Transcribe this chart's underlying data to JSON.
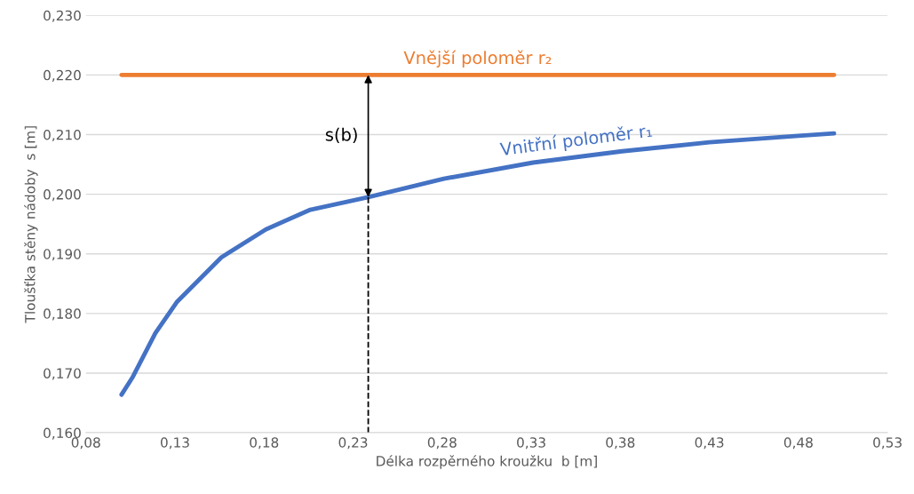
{
  "chart_data": {
    "type": "line",
    "xlabel": "Délka rozpěrného kroužku  b [m]",
    "ylabel": "Tloušťka stěny nádoby  s [m]",
    "xlim": [
      0.08,
      0.53
    ],
    "ylim": [
      0.16,
      0.23
    ],
    "xticks": [
      {
        "value": 0.08,
        "label": "0,08"
      },
      {
        "value": 0.13,
        "label": "0,13"
      },
      {
        "value": 0.18,
        "label": "0,18"
      },
      {
        "value": 0.23,
        "label": "0,23"
      },
      {
        "value": 0.28,
        "label": "0,28"
      },
      {
        "value": 0.33,
        "label": "0,33"
      },
      {
        "value": 0.38,
        "label": "0,38"
      },
      {
        "value": 0.43,
        "label": "0,43"
      },
      {
        "value": 0.48,
        "label": "0,48"
      },
      {
        "value": 0.53,
        "label": "0,53"
      }
    ],
    "yticks": [
      {
        "value": 0.16,
        "label": "0,160"
      },
      {
        "value": 0.17,
        "label": "0,170"
      },
      {
        "value": 0.18,
        "label": "0,180"
      },
      {
        "value": 0.19,
        "label": "0,190"
      },
      {
        "value": 0.2,
        "label": "0,200"
      },
      {
        "value": 0.21,
        "label": "0,210"
      },
      {
        "value": 0.22,
        "label": "0,220"
      },
      {
        "value": 0.23,
        "label": "0,230"
      }
    ],
    "grid": "y",
    "legend": false,
    "series": [
      {
        "name": "Vnější poloměr r₂",
        "color": "#ed7d31",
        "x": [
          0.1,
          0.5
        ],
        "values": [
          0.22,
          0.22
        ]
      },
      {
        "name": "Vnitřní poloměr r₁",
        "color": "#4472c4",
        "x": [
          0.1,
          0.106,
          0.119,
          0.131,
          0.156,
          0.181,
          0.206,
          0.2385,
          0.281,
          0.331,
          0.381,
          0.43,
          0.48,
          0.5
        ],
        "values": [
          0.1664,
          0.1692,
          0.1767,
          0.1819,
          0.1894,
          0.1941,
          0.1974,
          0.1995,
          0.2026,
          0.2053,
          0.2072,
          0.2087,
          0.2098,
          0.2102
        ]
      },
      {
        "color": "#000000",
        "line_style": "dashed",
        "x": [
          0.2385,
          0.2385
        ],
        "values": [
          0.16,
          0.1995
        ]
      }
    ],
    "annotations": [
      "s(b)"
    ]
  }
}
